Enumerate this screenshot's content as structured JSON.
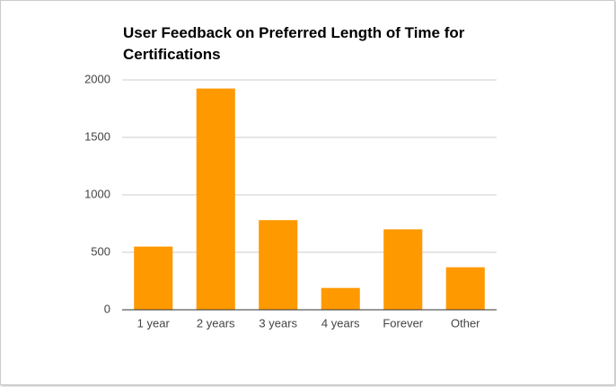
{
  "chart_data": {
    "type": "bar",
    "title": "User Feedback on Preferred Length of Time for Certifications",
    "categories": [
      "1 year",
      "2 years",
      "3 years",
      "4 years",
      "Forever",
      "Other"
    ],
    "values": [
      550,
      1925,
      780,
      190,
      700,
      370
    ],
    "color": "#ff9900",
    "ylim": [
      0,
      2000
    ],
    "yticks": [
      0,
      500,
      1000,
      1500,
      2000
    ],
    "grid": true
  }
}
